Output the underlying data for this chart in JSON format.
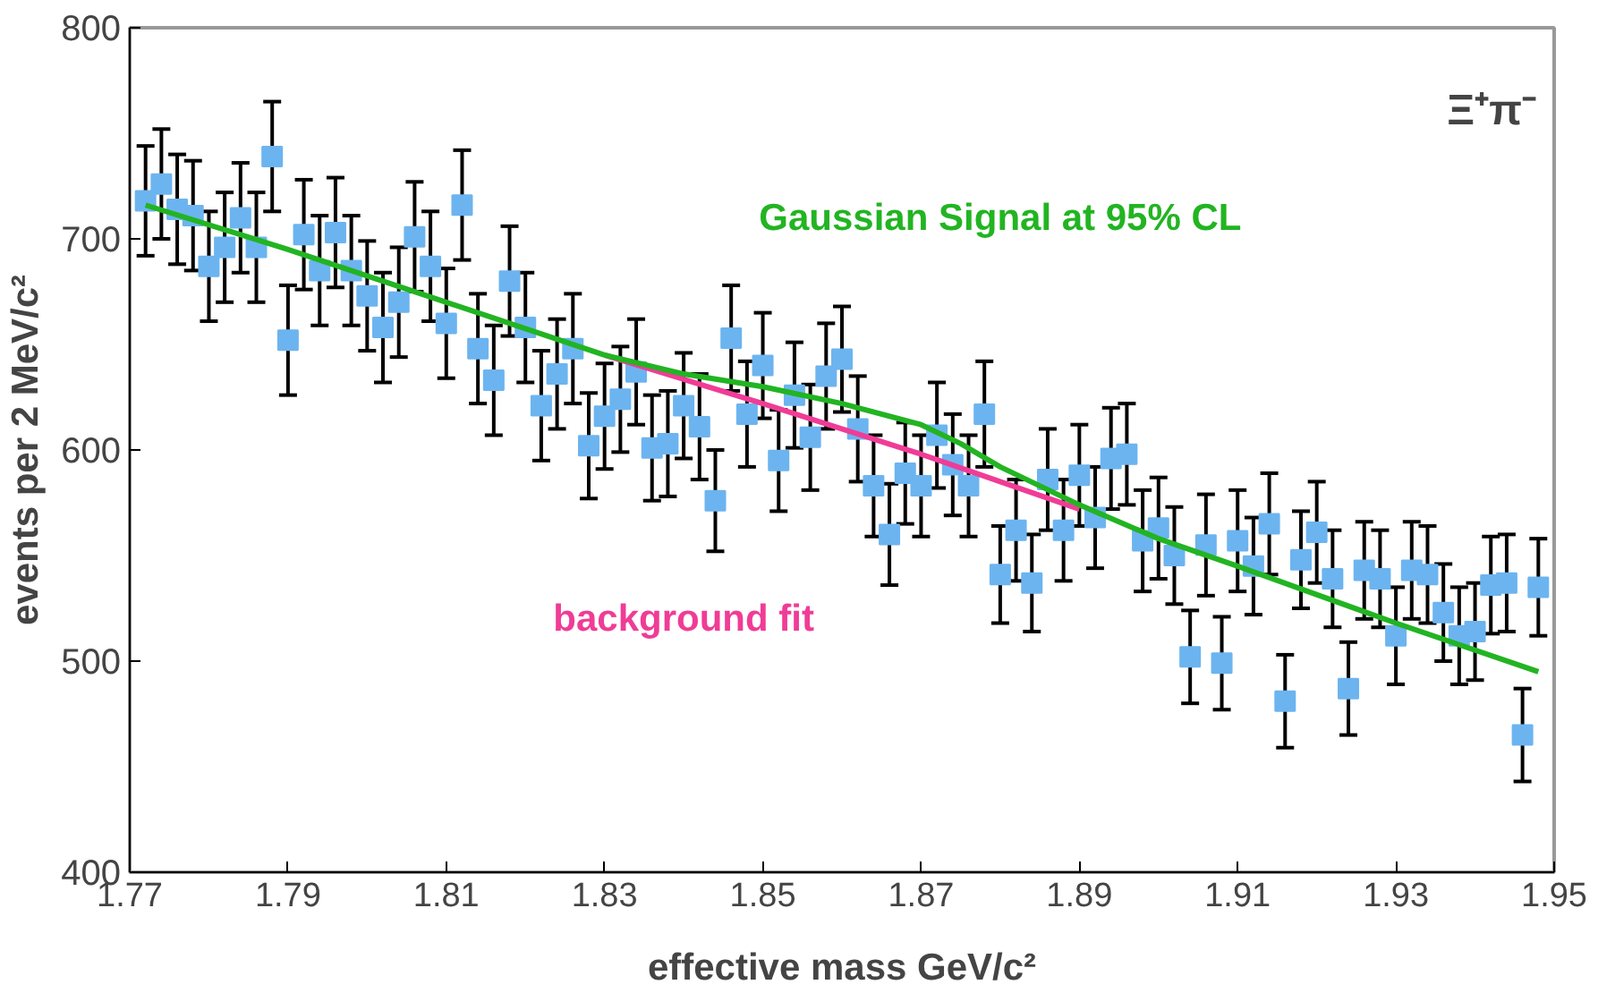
{
  "chart_data": {
    "type": "scatter",
    "xlabel": "effective mass GeV/c²",
    "ylabel": "events per 2 MeV/c²",
    "xlim": [
      1.77,
      1.95
    ],
    "xticks": [
      1.77,
      1.79,
      1.81,
      1.83,
      1.85,
      1.87,
      1.89,
      1.91,
      1.93,
      1.95
    ],
    "ylim": [
      400,
      800
    ],
    "yticks": [
      400,
      500,
      600,
      700,
      800
    ],
    "grid": false,
    "annotations": [
      "Ξ⁺π⁻"
    ],
    "series": [
      {
        "color": "#6cb4f0",
        "marker": "square",
        "x": [
          1.772,
          1.774,
          1.776,
          1.778,
          1.78,
          1.782,
          1.784,
          1.786,
          1.788,
          1.79,
          1.792,
          1.794,
          1.796,
          1.798,
          1.8,
          1.802,
          1.804,
          1.806,
          1.808,
          1.81,
          1.812,
          1.814,
          1.816,
          1.818,
          1.82,
          1.822,
          1.824,
          1.826,
          1.828,
          1.83,
          1.832,
          1.834,
          1.836,
          1.838,
          1.84,
          1.842,
          1.844,
          1.846,
          1.848,
          1.85,
          1.852,
          1.854,
          1.856,
          1.858,
          1.86,
          1.862,
          1.864,
          1.866,
          1.868,
          1.87,
          1.872,
          1.874,
          1.876,
          1.878,
          1.88,
          1.882,
          1.884,
          1.886,
          1.888,
          1.89,
          1.892,
          1.894,
          1.896,
          1.898,
          1.9,
          1.902,
          1.904,
          1.906,
          1.908,
          1.91,
          1.912,
          1.914,
          1.916,
          1.918,
          1.92,
          1.922,
          1.924,
          1.926,
          1.928,
          1.93,
          1.932,
          1.934,
          1.936,
          1.938,
          1.94,
          1.942,
          1.944,
          1.946,
          1.948
        ],
        "values": [
          718,
          726,
          714,
          711,
          687,
          696,
          710,
          696,
          739,
          652,
          702,
          685,
          703,
          685,
          673,
          658,
          670,
          701,
          687,
          660,
          716,
          648,
          633,
          680,
          658,
          621,
          636,
          648,
          602,
          616,
          624,
          637,
          601,
          603,
          621,
          611,
          576,
          653,
          617,
          640,
          595,
          626,
          606,
          635,
          643,
          610,
          583,
          560,
          589,
          583,
          607,
          593,
          583,
          617,
          541,
          562,
          537,
          586,
          562,
          588,
          568,
          596,
          598,
          557,
          563,
          550,
          502,
          555,
          499,
          557,
          545,
          565,
          481,
          548,
          561,
          539,
          487,
          543,
          539,
          512,
          543,
          541,
          523,
          512,
          514,
          536,
          537,
          465,
          535
        ],
        "errors": [
          26,
          26,
          26,
          26,
          26,
          26,
          26,
          26,
          26,
          26,
          26,
          26,
          26,
          26,
          26,
          26,
          26,
          26,
          26,
          26,
          26,
          26,
          26,
          26,
          26,
          26,
          26,
          26,
          25,
          25,
          25,
          25,
          25,
          25,
          25,
          25,
          24,
          25,
          25,
          25,
          24,
          25,
          25,
          25,
          25,
          25,
          24,
          24,
          24,
          24,
          25,
          24,
          24,
          25,
          23,
          24,
          23,
          24,
          24,
          24,
          24,
          24,
          24,
          24,
          24,
          23,
          22,
          24,
          22,
          24,
          23,
          24,
          22,
          23,
          24,
          23,
          22,
          23,
          23,
          23,
          23,
          23,
          23,
          23,
          23,
          23,
          23,
          22,
          23
        ]
      },
      {
        "type": "line",
        "name": "background fit",
        "color": "#f03c96",
        "x": [
          1.83,
          1.85,
          1.87,
          1.89
        ],
        "values": [
          645,
          622,
          598,
          572
        ]
      },
      {
        "type": "line",
        "name": "Gaussian Signal at 95% CL",
        "color": "#22b422",
        "x": [
          1.772,
          1.79,
          1.81,
          1.83,
          1.84,
          1.85,
          1.86,
          1.87,
          1.875,
          1.88,
          1.89,
          1.9,
          1.91,
          1.93,
          1.948
        ],
        "values": [
          716,
          695,
          670,
          645,
          636,
          630,
          622,
          612,
          603,
          592,
          574,
          558,
          545,
          518,
          495
        ]
      }
    ]
  }
}
